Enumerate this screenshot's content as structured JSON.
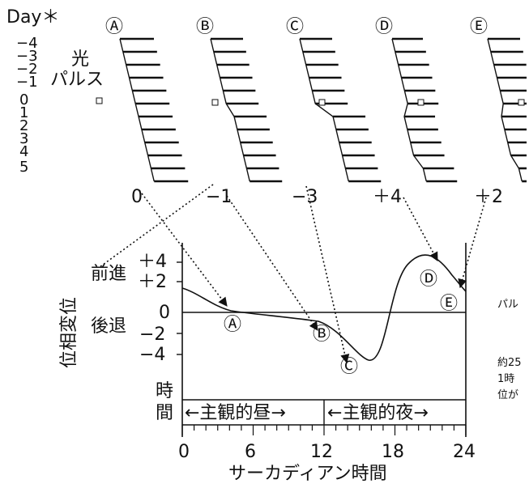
{
  "header": {
    "day_label": "Day＊",
    "pulse_label_1": "光",
    "pulse_label_2": "パルス",
    "day_ticks": [
      "−4",
      "−3",
      "−2",
      "−1",
      "0",
      "1",
      "2",
      "3",
      "4",
      "5"
    ]
  },
  "panels": [
    {
      "marker": "Ⓐ",
      "shift": "0"
    },
    {
      "marker": "Ⓑ",
      "shift": "−1"
    },
    {
      "marker": "Ⓒ",
      "shift": "−3"
    },
    {
      "marker": "Ⓓ",
      "shift": "＋4"
    },
    {
      "marker": "Ⓔ",
      "shift": "＋2"
    }
  ],
  "graph": {
    "yaxis_label": "位相変位",
    "advance_label": "前進",
    "delay_label": "後退",
    "y_ticks": [
      "＋4",
      "＋2",
      "0",
      "−2",
      "−4"
    ],
    "point_labels": [
      "Ⓐ",
      "Ⓑ",
      "Ⓒ",
      "Ⓓ",
      "Ⓔ"
    ],
    "time_label_1": "時",
    "time_label_2": "間",
    "subjective_day": "←主観的昼→",
    "subjective_night": "←主観的夜→",
    "x_ticks": [
      "0",
      "6",
      "12",
      "18",
      "24"
    ],
    "xaxis_label": "サーカディアン時間"
  },
  "margin_fragments": [
    "パル",
    "約25",
    "1時",
    "位が"
  ]
}
